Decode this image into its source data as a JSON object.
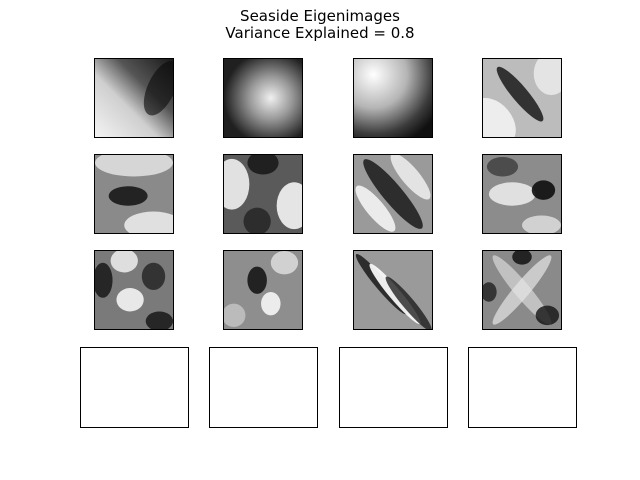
{
  "figure": {
    "title_line1": "Seaside Eigenimages",
    "title_line2": "Variance Explained = 0.8"
  },
  "panels": {
    "rows": 4,
    "columns": 4,
    "filled_panels": 12,
    "empty_panels": 4,
    "colormap": "grayscale"
  }
}
